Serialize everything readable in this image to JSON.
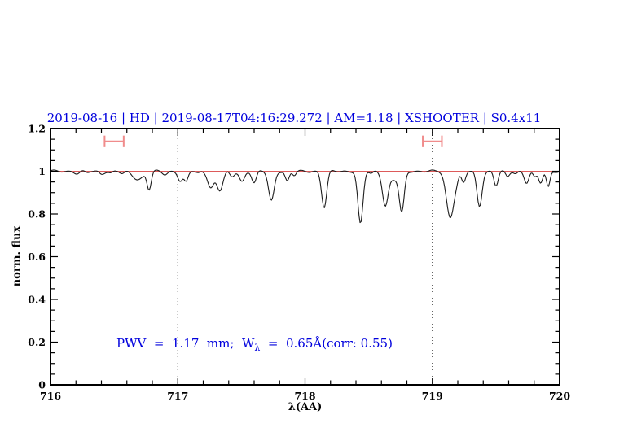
{
  "title": "2019-08-16 | HD | 2019-08-17T04:16:29.272 | AM=1.18 | XSHOOTER | S0.4x11",
  "annotation": {
    "prefix": "PWV  =  1.17  mm;  W",
    "sub": "λ",
    "suffix": "  =  0.65Å(corr: 0.55)",
    "pwv_mm": "1.17",
    "equivalent_width_A": "0.65",
    "corr": "0.55"
  },
  "colors": {
    "accent_blue": "#0000dd",
    "spectrum": "#1c1c1c",
    "continuum_red": "#dd5a5a",
    "marker_red": "#f08c8c",
    "axis_black": "#000000",
    "dotted_line": "#333333",
    "background": "#ffffff"
  },
  "chart_data": {
    "type": "line",
    "title": "2019-08-16 | HD | 2019-08-17T04:16:29.272 | AM=1.18 | XSHOOTER | S0.4x11",
    "xlabel": "λ(AA)",
    "ylabel": "norm. flux",
    "xlim": [
      716,
      720
    ],
    "ylim": [
      0,
      1.2
    ],
    "x_major_ticks": [
      716,
      717,
      718,
      719,
      720
    ],
    "x_tick_labels": [
      "716",
      "717",
      "718",
      "719",
      "720"
    ],
    "x_minor_step": 0.2,
    "y_major_ticks": [
      0,
      0.2,
      0.4,
      0.6,
      0.8,
      1,
      1.2
    ],
    "y_tick_labels": [
      "0",
      "0.2",
      "0.4",
      "0.6",
      "0.8",
      "1",
      "1.2"
    ],
    "y_minor_step": 0.05,
    "grid": false,
    "dotted_lines_x": [
      717,
      719
    ],
    "continuum_flux": 1.0,
    "region_markers": {
      "x": [
        716.5,
        719.0
      ],
      "half_width": 0.075,
      "flux": 1.14,
      "cap_half_height": 0.027
    },
    "absorption_lines_format": [
      "center_wavelength_A",
      "depth",
      "sigma_A"
    ],
    "absorption_lines": [
      [
        716.21,
        0.01,
        0.02
      ],
      [
        716.285,
        0.008,
        0.018
      ],
      [
        716.4,
        0.012,
        0.018
      ],
      [
        716.475,
        0.009,
        0.015
      ],
      [
        716.565,
        0.012,
        0.018
      ],
      [
        716.69,
        0.038,
        0.04
      ],
      [
        716.775,
        0.082,
        0.016
      ],
      [
        716.9,
        0.015,
        0.02
      ],
      [
        717.02,
        0.045,
        0.018
      ],
      [
        717.065,
        0.05,
        0.016
      ],
      [
        717.16,
        0.01,
        0.018
      ],
      [
        717.26,
        0.075,
        0.024
      ],
      [
        717.33,
        0.09,
        0.024
      ],
      [
        717.425,
        0.028,
        0.018
      ],
      [
        717.505,
        0.048,
        0.02
      ],
      [
        717.6,
        0.055,
        0.018
      ],
      [
        717.735,
        0.138,
        0.022
      ],
      [
        717.86,
        0.048,
        0.016
      ],
      [
        717.915,
        0.02,
        0.014
      ],
      [
        718.15,
        0.17,
        0.02
      ],
      [
        718.435,
        0.248,
        0.02
      ],
      [
        718.52,
        0.012,
        0.015
      ],
      [
        718.63,
        0.15,
        0.022
      ],
      [
        718.7,
        0.04,
        0.045
      ],
      [
        718.76,
        0.18,
        0.019
      ],
      [
        719.14,
        0.215,
        0.03
      ],
      [
        719.19,
        0.022,
        0.018
      ],
      [
        719.245,
        0.055,
        0.016
      ],
      [
        719.37,
        0.165,
        0.02
      ],
      [
        719.5,
        0.068,
        0.016
      ],
      [
        719.59,
        0.028,
        0.016
      ],
      [
        719.655,
        0.01,
        0.015
      ],
      [
        719.74,
        0.052,
        0.018
      ],
      [
        719.805,
        0.03,
        0.014
      ],
      [
        719.85,
        0.055,
        0.016
      ],
      [
        719.91,
        0.075,
        0.014
      ]
    ],
    "noise": {
      "amp1": 0.0035,
      "freq1": 55.0,
      "amp2": 0.0025,
      "freq2": 23.0,
      "phase2": 1.3
    }
  }
}
